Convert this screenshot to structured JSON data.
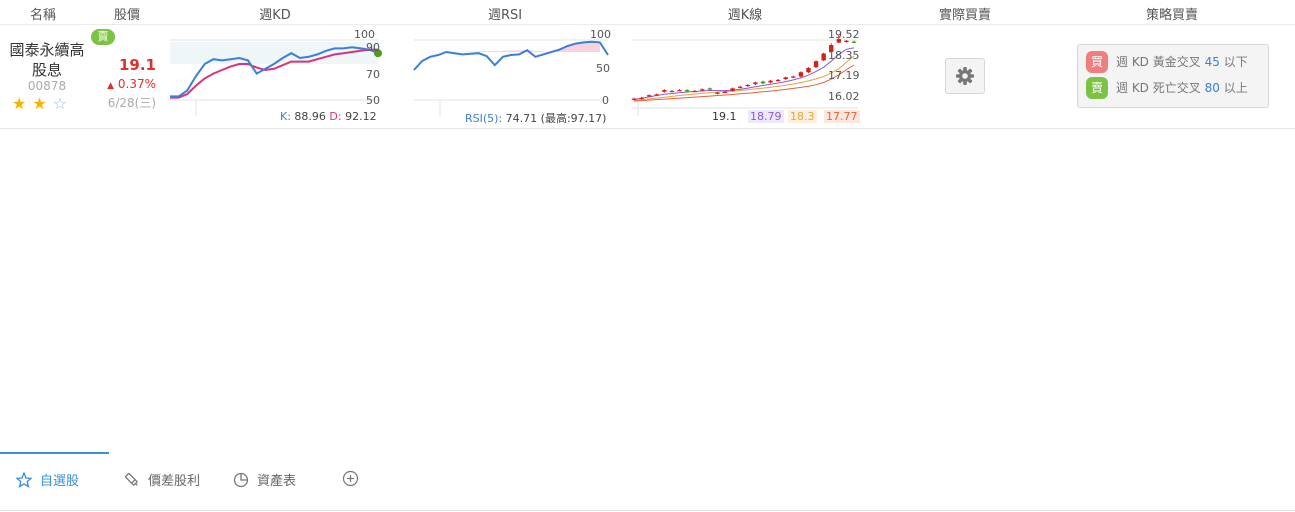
{
  "columns": {
    "name": "名稱",
    "price": "股價",
    "kd": "週KD",
    "rsi": "週RSI",
    "kline": "週K線",
    "actual": "實際買賣",
    "strategy": "策略買賣"
  },
  "stock": {
    "name_line1": "國泰永續高",
    "name_line2": "股息",
    "code": "00878",
    "badge": "賣",
    "price": "19.1",
    "change": "0.37%",
    "date": "6/28(三)",
    "stars_on": 2,
    "stars_total": 3
  },
  "kd_chart": {
    "ticks": [
      "100",
      "90",
      "70",
      "50"
    ],
    "k_label": "K:",
    "k_value": "88.96",
    "d_label": "D:",
    "d_value": "92.12",
    "k_color": "#3a7fd9",
    "d_color": "#e0307a",
    "k_series": [
      53,
      53,
      58,
      70,
      80,
      84,
      83,
      84,
      85,
      83,
      72,
      76,
      80,
      85,
      89,
      85,
      86,
      88,
      91,
      93,
      93,
      94,
      93,
      92,
      89
    ],
    "d_series": [
      52,
      52,
      55,
      62,
      68,
      72,
      75,
      78,
      80,
      80,
      77,
      75,
      76,
      79,
      82,
      82,
      82,
      84,
      86,
      88,
      89,
      90,
      91,
      92,
      92
    ]
  },
  "rsi_chart": {
    "ticks": [
      "100",
      "50",
      "0"
    ],
    "label": "RSI(5):",
    "value": "74.71",
    "max_label": "(最高:",
    "max_value": "97.17",
    "max_close": ")",
    "series": [
      50,
      65,
      72,
      75,
      80,
      78,
      76,
      77,
      78,
      73,
      58,
      72,
      75,
      76,
      83,
      72,
      76,
      80,
      84,
      90,
      94,
      96,
      97,
      96,
      75
    ]
  },
  "kline_chart": {
    "ticks": [
      "19.52",
      "18.35",
      "17.19",
      "16.02"
    ],
    "ma_values": [
      "19.1",
      "18.79",
      "18.3",
      "17.77"
    ],
    "ma_colors": [
      "#333333",
      "#8a5ad6",
      "#e8a43a",
      "#e8603a"
    ],
    "candles": [
      {
        "o": 15.75,
        "c": 15.8,
        "h": 15.85,
        "l": 15.7
      },
      {
        "o": 15.8,
        "c": 15.85,
        "h": 15.9,
        "l": 15.75
      },
      {
        "o": 15.95,
        "c": 16.0,
        "h": 16.05,
        "l": 15.9
      },
      {
        "o": 16.0,
        "c": 16.05,
        "h": 16.1,
        "l": 15.95
      },
      {
        "o": 16.2,
        "c": 16.3,
        "h": 16.35,
        "l": 16.15
      },
      {
        "o": 16.25,
        "c": 16.25,
        "h": 16.3,
        "l": 16.2
      },
      {
        "o": 16.3,
        "c": 16.3,
        "h": 16.35,
        "l": 16.25
      },
      {
        "o": 16.3,
        "c": 16.25,
        "h": 16.35,
        "l": 16.2
      },
      {
        "o": 16.25,
        "c": 16.25,
        "h": 16.3,
        "l": 16.2
      },
      {
        "o": 16.3,
        "c": 16.35,
        "h": 16.4,
        "l": 16.25
      },
      {
        "o": 16.4,
        "c": 16.35,
        "h": 16.45,
        "l": 16.3
      },
      {
        "o": 16.1,
        "c": 16.15,
        "h": 16.2,
        "l": 16.05
      },
      {
        "o": 16.2,
        "c": 16.2,
        "h": 16.25,
        "l": 16.15
      },
      {
        "o": 16.25,
        "c": 16.4,
        "h": 16.45,
        "l": 16.2
      },
      {
        "o": 16.45,
        "c": 16.5,
        "h": 16.55,
        "l": 16.4
      },
      {
        "o": 16.55,
        "c": 16.6,
        "h": 16.65,
        "l": 16.5
      },
      {
        "o": 16.65,
        "c": 16.75,
        "h": 16.8,
        "l": 16.6
      },
      {
        "o": 16.8,
        "c": 16.7,
        "h": 16.85,
        "l": 16.65
      },
      {
        "o": 16.75,
        "c": 16.85,
        "h": 16.9,
        "l": 16.7
      },
      {
        "o": 16.85,
        "c": 16.9,
        "h": 16.95,
        "l": 16.8
      },
      {
        "o": 16.95,
        "c": 17.05,
        "h": 17.1,
        "l": 16.9
      },
      {
        "o": 17.05,
        "c": 17.1,
        "h": 17.15,
        "l": 17.0
      },
      {
        "o": 17.1,
        "c": 17.35,
        "h": 17.4,
        "l": 17.05
      },
      {
        "o": 17.35,
        "c": 17.6,
        "h": 17.65,
        "l": 17.3
      },
      {
        "o": 17.65,
        "c": 18.0,
        "h": 18.05,
        "l": 17.6
      },
      {
        "o": 18.05,
        "c": 18.45,
        "h": 18.5,
        "l": 18.0
      },
      {
        "o": 18.55,
        "c": 18.95,
        "h": 19.05,
        "l": 18.5
      },
      {
        "o": 19.1,
        "c": 19.3,
        "h": 19.52,
        "l": 19.05
      },
      {
        "o": 19.2,
        "c": 19.2,
        "h": 19.25,
        "l": 19.1
      },
      {
        "o": 19.15,
        "c": 19.1,
        "h": 19.2,
        "l": 19.05
      }
    ],
    "ma_series": [
      [
        15.75,
        15.82,
        15.9,
        15.98,
        16.05,
        16.1,
        16.15,
        16.19,
        16.22,
        16.25,
        16.28,
        16.27,
        16.27,
        16.3,
        16.35,
        16.42,
        16.5,
        16.57,
        16.65,
        16.72,
        16.8,
        16.9,
        17.02,
        17.18,
        17.4,
        17.65,
        18.0,
        18.4,
        18.7,
        18.79
      ],
      [
        15.7,
        15.74,
        15.78,
        15.83,
        15.88,
        15.93,
        15.98,
        16.03,
        16.07,
        16.11,
        16.15,
        16.18,
        16.21,
        16.24,
        16.28,
        16.32,
        16.37,
        16.42,
        16.47,
        16.53,
        16.59,
        16.66,
        16.74,
        16.84,
        16.96,
        17.1,
        17.3,
        17.55,
        17.95,
        18.3
      ],
      [
        15.65,
        15.68,
        15.71,
        15.74,
        15.77,
        15.8,
        15.83,
        15.86,
        15.89,
        15.92,
        15.95,
        15.98,
        16.01,
        16.04,
        16.08,
        16.12,
        16.16,
        16.2,
        16.24,
        16.29,
        16.34,
        16.4,
        16.46,
        16.53,
        16.62,
        16.75,
        16.95,
        17.2,
        17.5,
        17.77
      ]
    ]
  },
  "strategy": {
    "buy_tag": "買",
    "buy_text": "週 KD 黃金交叉",
    "buy_value": "45",
    "buy_suffix": "以下",
    "sell_tag": "賣",
    "sell_text": "週 KD 死亡交叉",
    "sell_value": "80",
    "sell_suffix": "以上",
    "buy_color": "#ef7f7f",
    "sell_color": "#7cc243"
  },
  "tabs": [
    {
      "label": "自選股",
      "icon": "star-icon"
    },
    {
      "label": "價差股利",
      "icon": "pen-icon"
    },
    {
      "label": "資產表",
      "icon": "pie-chart-icon"
    },
    {
      "label": "",
      "icon": "add-icon"
    }
  ]
}
